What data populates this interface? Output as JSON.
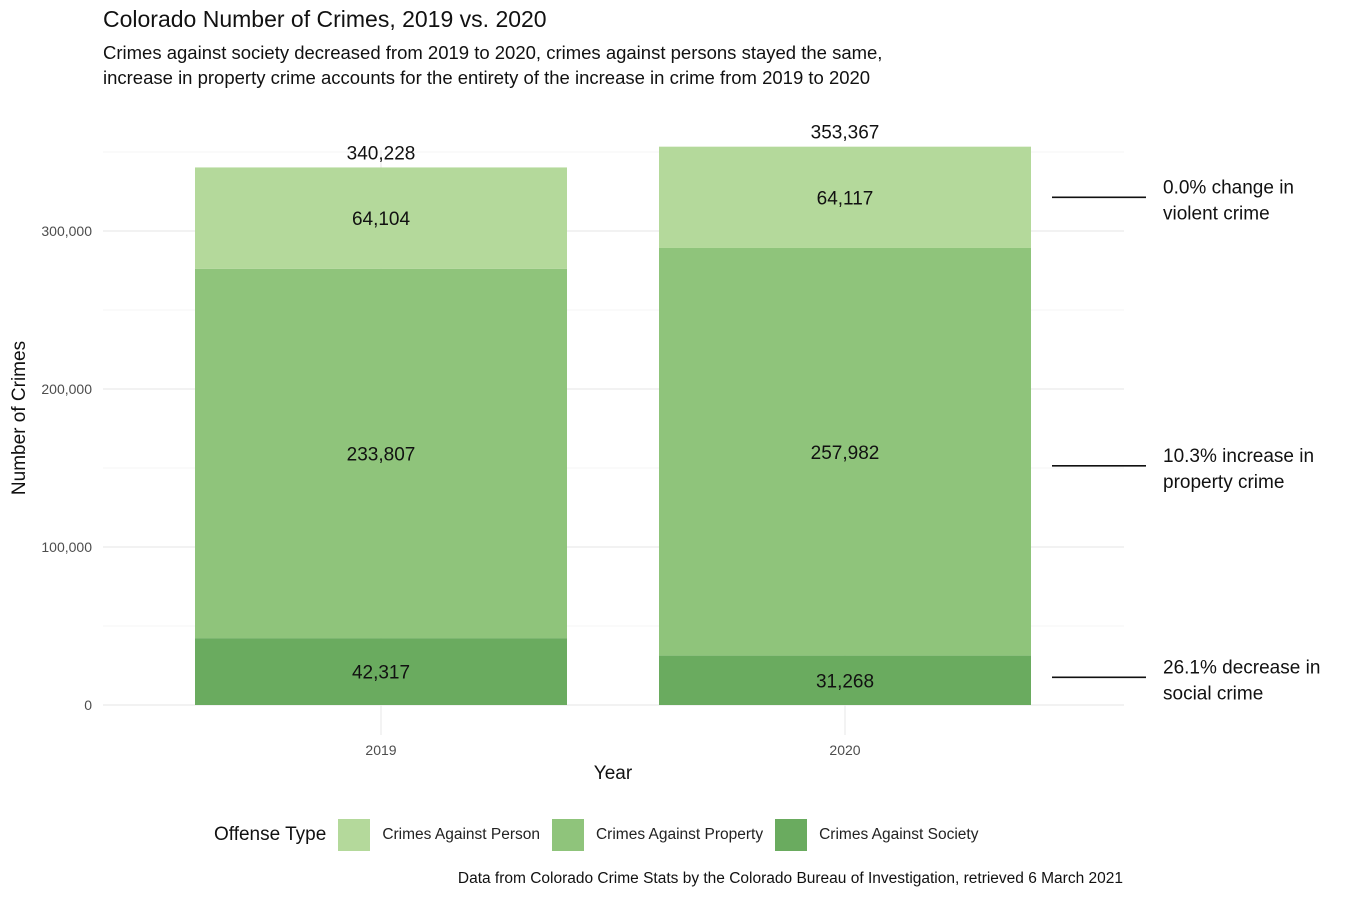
{
  "title": "Colorado Number of Crimes, 2019 vs. 2020",
  "subtitle_lines": [
    "Crimes against society decreased from 2019 to 2020, crimes against persons stayed the same,",
    "increase in property crime accounts for the entirety of the increase in crime from 2019 to 2020"
  ],
  "caption": "Data from Colorado Crime Stats by the Colorado Bureau of Investigation, retrieved 6 March 2021",
  "legend": {
    "title": "Offense Type",
    "items": [
      {
        "label": "Crimes Against Person",
        "color": "#b4d99b"
      },
      {
        "label": "Crimes Against Property",
        "color": "#8fc47b"
      },
      {
        "label": "Crimes Against Society",
        "color": "#6aab5f"
      }
    ]
  },
  "chart_data": {
    "type": "bar",
    "stacked": true,
    "categories": [
      "2019",
      "2020"
    ],
    "series": [
      {
        "name": "Crimes Against Society",
        "values": [
          42317,
          31268
        ],
        "color": "#6aab5f"
      },
      {
        "name": "Crimes Against Property",
        "values": [
          233807,
          257982
        ],
        "color": "#8fc47b"
      },
      {
        "name": "Crimes Against Person",
        "values": [
          64104,
          64117
        ],
        "color": "#b4d99b"
      }
    ],
    "segment_labels": [
      [
        "42,317",
        "31,268"
      ],
      [
        "233,807",
        "257,982"
      ],
      [
        "64,104",
        "64,117"
      ]
    ],
    "totals": [
      340228,
      353367
    ],
    "total_labels": [
      "340,228",
      "353,367"
    ],
    "xlabel": "Year",
    "ylabel": "Number of Crimes",
    "ylim": [
      0,
      353367
    ],
    "yticks": [
      0,
      100000,
      200000,
      300000
    ],
    "ytick_labels": [
      "0",
      "100,000",
      "200,000",
      "300,000"
    ],
    "grid": true,
    "legend_position": "bottom",
    "annotations": [
      {
        "series": "Crimes Against Person",
        "lines": [
          "0.0% change in",
          "violent crime"
        ]
      },
      {
        "series": "Crimes Against Property",
        "lines": [
          "10.3% increase in",
          "property crime"
        ]
      },
      {
        "series": "Crimes Against Society",
        "lines": [
          "26.1% decrease in",
          "social crime"
        ]
      }
    ]
  }
}
